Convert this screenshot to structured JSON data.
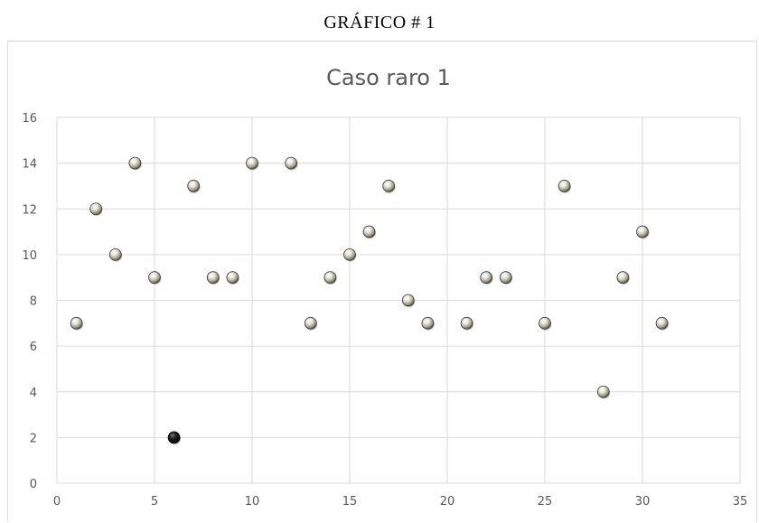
{
  "caption": "GRÁFICO # 1",
  "chart_data": {
    "type": "scatter",
    "title": "Caso raro 1",
    "xlabel": "",
    "ylabel": "",
    "xlim": [
      0,
      35
    ],
    "ylim": [
      0,
      16
    ],
    "x_ticks": [
      0,
      5,
      10,
      15,
      20,
      25,
      30,
      35
    ],
    "y_ticks": [
      0,
      2,
      4,
      6,
      8,
      10,
      12,
      14,
      16
    ],
    "grid": true,
    "legend": "none",
    "marker_color": "#c9c6b6",
    "outlier_color": "#111111",
    "series": [
      {
        "x": [
          1,
          2,
          3,
          4,
          5,
          7,
          8,
          9,
          10,
          12,
          13,
          14,
          15,
          16,
          17,
          18,
          19,
          21,
          22,
          23,
          25,
          26,
          28,
          29,
          30,
          31
        ],
        "y": [
          7,
          12,
          10,
          14,
          9,
          13,
          9,
          9,
          14,
          14,
          7,
          9,
          10,
          11,
          13,
          8,
          7,
          7,
          9,
          9,
          7,
          13,
          4,
          9,
          11,
          7
        ]
      },
      {
        "x": [
          6
        ],
        "y": [
          2
        ],
        "highlight": true
      }
    ]
  }
}
